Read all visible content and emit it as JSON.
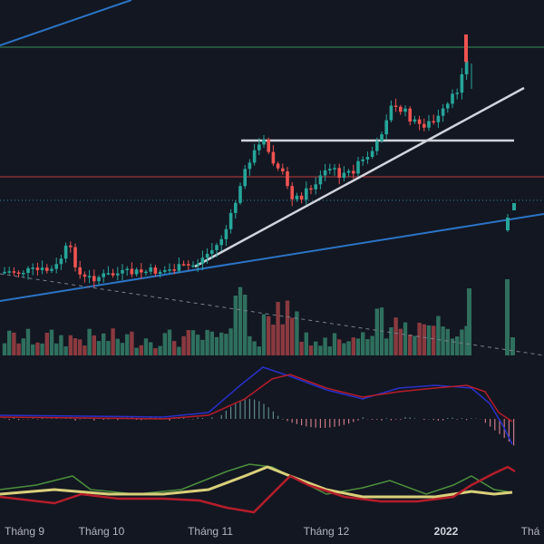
{
  "colors": {
    "background": "#131722",
    "up": "#26a69a",
    "down": "#ef5350",
    "up_volume": "#2f6f5e",
    "down_volume": "#8a3a3f",
    "trendline_white": "#d1d4dc",
    "trendline_blue": "#2b74c5",
    "level_green": "#3a8f5a",
    "level_red": "#c2393f",
    "level_dotted": "#2a8ea0",
    "macd_line": "#2930c9",
    "signal_line": "#b51d2a",
    "rsi_green": "#4c8f3c",
    "rsi_yellow": "#d9d07a",
    "rsi_red": "#b51d2a"
  },
  "chart_data": [
    {
      "type": "candlestick",
      "panel": "price",
      "x_ticks": [
        "Tháng 9",
        "Tháng 10",
        "Tháng 11",
        "Tháng 12",
        "2022",
        "Thá"
      ],
      "bold_ticks": [
        "2022"
      ],
      "horizontal_levels": [
        {
          "style": "solid",
          "color": "green"
        },
        {
          "style": "solid",
          "color": "red"
        },
        {
          "style": "dotted",
          "color": "teal"
        }
      ],
      "trendlines": [
        "white-rising-support",
        "white-horizontal-resistance",
        "blue-long-support",
        "blue-upper",
        "gray-dashed-descending"
      ],
      "series_description": "Daily candles with volume bars"
    },
    {
      "type": "line",
      "panel": "macd",
      "series": [
        "macd",
        "signal",
        "histogram"
      ]
    },
    {
      "type": "line",
      "panel": "oscillator",
      "series": [
        "green",
        "yellow",
        "red"
      ]
    }
  ]
}
